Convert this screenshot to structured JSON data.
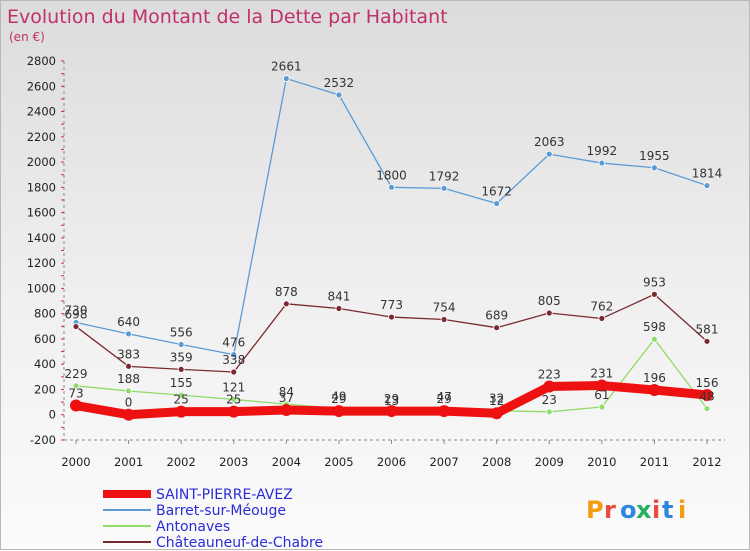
{
  "chart_data": {
    "type": "line",
    "title": "Evolution du Montant de la Dette par Habitant",
    "subtitle": "(en €)",
    "xlabel": "",
    "ylabel": "",
    "categories": [
      "2000",
      "2001",
      "2002",
      "2003",
      "2004",
      "2005",
      "2006",
      "2007",
      "2008",
      "2009",
      "2010",
      "2011",
      "2012"
    ],
    "ylim": [
      -200,
      2800
    ],
    "yticks": [
      -200,
      0,
      200,
      400,
      600,
      800,
      1000,
      1200,
      1400,
      1600,
      1800,
      2000,
      2200,
      2400,
      2600,
      2800
    ],
    "grid": false,
    "legend_position": "bottom-left",
    "series": [
      {
        "name": "Barret-sur-Méouge",
        "color": "#5b9bd5",
        "stroke_width": 1.3,
        "marker": 3,
        "values": [
          730,
          640,
          556,
          476,
          2661,
          2532,
          1800,
          1792,
          1672,
          2063,
          1992,
          1955,
          1814
        ]
      },
      {
        "name": "Châteauneuf-de-Chabre",
        "color": "#7a2a2f",
        "stroke_width": 1.3,
        "marker": 3,
        "values": [
          698,
          383,
          359,
          338,
          878,
          841,
          773,
          754,
          689,
          805,
          762,
          953,
          581
        ]
      },
      {
        "name": "Antonaves",
        "color": "#8fdc6a",
        "stroke_width": 1.3,
        "marker": 3,
        "values": [
          229,
          188,
          155,
          121,
          84,
          49,
          13,
          47,
          32,
          23,
          61,
          598,
          48
        ]
      },
      {
        "name": "SAINT-PIERRE-AVEZ",
        "color": "#ee1111",
        "stroke_width": 9,
        "marker": 6,
        "values": [
          73,
          0,
          25,
          25,
          37,
          29,
          29,
          29,
          12,
          223,
          231,
          196,
          156
        ]
      }
    ],
    "legend_order": [
      "SAINT-PIERRE-AVEZ",
      "Barret-sur-Méouge",
      "Antonaves",
      "Châteauneuf-de-Chabre"
    ]
  },
  "watermark": {
    "text": "Proxiti"
  }
}
